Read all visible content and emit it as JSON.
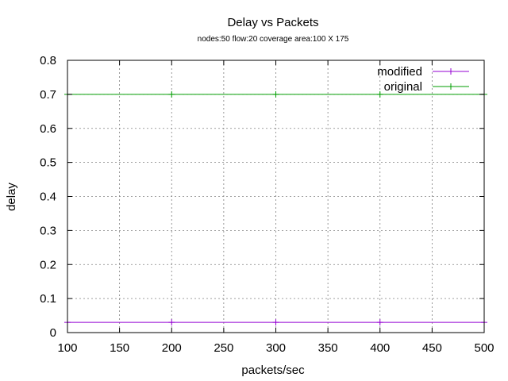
{
  "chart_data": {
    "type": "line",
    "title": "Delay vs Packets",
    "subtitle": "nodes:50  flow:20  coverage area:100 X 175",
    "xlabel": "packets/sec",
    "ylabel": "delay",
    "xlim": [
      100,
      500
    ],
    "ylim": [
      0,
      0.8
    ],
    "xticks": [
      100,
      150,
      200,
      250,
      300,
      350,
      400,
      450,
      500
    ],
    "yticks": [
      0,
      0.1,
      0.2,
      0.3,
      0.4,
      0.5,
      0.6,
      0.7,
      0.8
    ],
    "ytick_labels": [
      "0",
      "0.1",
      "0.2",
      "0.3",
      "0.4",
      "0.5",
      "0.6",
      "0.7",
      "0.8"
    ],
    "grid": true,
    "legend_position": "top-right",
    "x": [
      100,
      200,
      300,
      400,
      500
    ],
    "series": [
      {
        "name": "modified",
        "color": "#9400d3",
        "values": [
          0.03,
          0.03,
          0.03,
          0.03,
          0.03
        ]
      },
      {
        "name": "original",
        "color": "#009e00",
        "values": [
          0.7,
          0.7,
          0.7,
          0.7,
          0.7
        ]
      }
    ]
  }
}
